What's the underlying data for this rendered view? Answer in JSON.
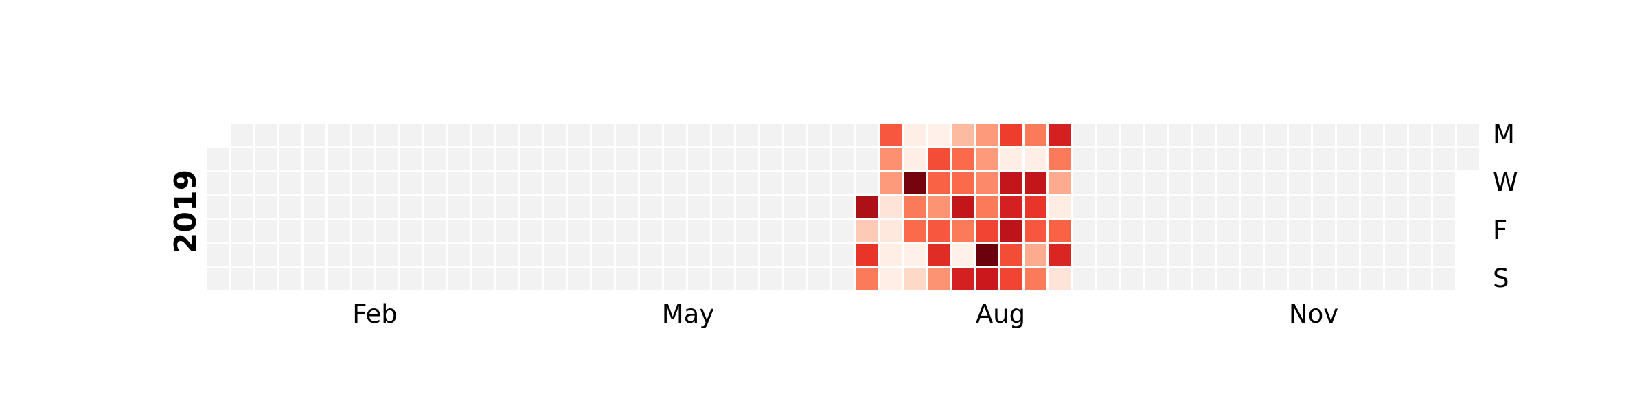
{
  "chart_data": {
    "type": "heatmap",
    "title": "",
    "year_label": "2019",
    "day_labels": [
      "M",
      "W",
      "F",
      "S"
    ],
    "month_labels": [
      "Feb",
      "May",
      "Aug",
      "Nov"
    ],
    "year_start_weekday": "Tuesday",
    "empty_color": "#f2f2f2",
    "colormap": "Reds",
    "value_range": [
      0,
      1
    ],
    "cell_note": "columns are calendar weeks starting Monday 2018-12-31; rows are Monday..Sunday; values are relative intensity 0-1",
    "active_weeks": [
      {
        "week_start": "2019-07-08",
        "values": [
          null,
          null,
          null,
          0.85,
          0.2,
          0.65,
          0.45
        ]
      },
      {
        "week_start": "2019-07-15",
        "values": [
          0.55,
          0.38,
          0.35,
          0.1,
          0.08,
          0.04,
          0.04
        ]
      },
      {
        "week_start": "2019-07-22",
        "values": [
          0.04,
          0.04,
          0.97,
          0.45,
          0.5,
          0.03,
          0.15
        ]
      },
      {
        "week_start": "2019-07-29",
        "values": [
          0.03,
          0.58,
          0.52,
          0.37,
          0.55,
          0.68,
          0.37
        ]
      },
      {
        "week_start": "2019-08-05",
        "values": [
          0.25,
          0.5,
          0.5,
          0.78,
          0.45,
          0.03,
          0.72
        ]
      },
      {
        "week_start": "2019-08-12",
        "values": [
          0.35,
          0.35,
          0.4,
          0.45,
          0.6,
          0.99,
          0.75
        ]
      },
      {
        "week_start": "2019-08-19",
        "values": [
          0.62,
          0.04,
          0.78,
          0.72,
          0.8,
          0.58,
          0.6
        ]
      },
      {
        "week_start": "2019-08-26",
        "values": [
          0.45,
          0.04,
          0.78,
          0.65,
          0.55,
          0.3,
          0.45
        ]
      },
      {
        "week_start": "2019-09-02",
        "values": [
          0.72,
          0.45,
          0.3,
          0.05,
          0.52,
          0.7,
          0.1
        ]
      }
    ]
  }
}
